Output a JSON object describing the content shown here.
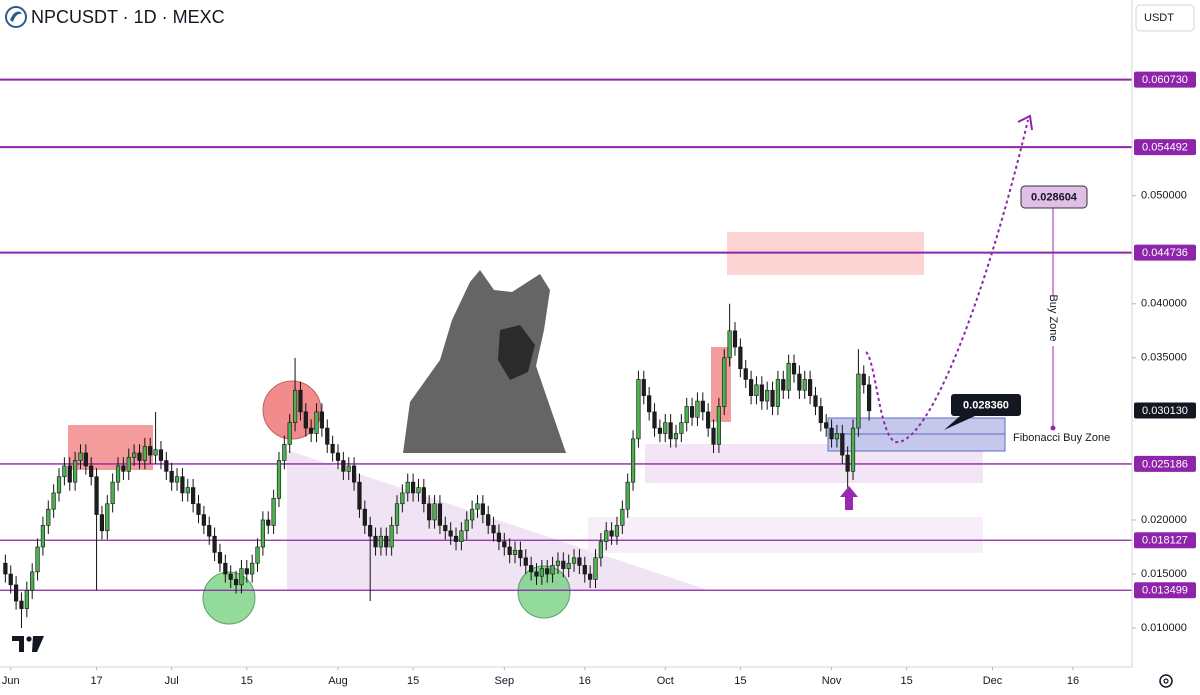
{
  "chart_data": {
    "type": "candlestick",
    "title": "NPCUSDT · 1D · MEXC",
    "currency": "USDT",
    "up_color": "#4caf50",
    "down_color": "#1e1e1e",
    "grid": false,
    "xlim": [
      "05-30",
      "12-27"
    ],
    "xticks": [
      {
        "value": "06-01",
        "label": "Jun"
      },
      {
        "value": "06-17",
        "label": "17"
      },
      {
        "value": "07-01",
        "label": "Jul"
      },
      {
        "value": "07-15",
        "label": "15"
      },
      {
        "value": "08-01",
        "label": "Aug"
      },
      {
        "value": "08-15",
        "label": "15"
      },
      {
        "value": "09-01",
        "label": "Sep"
      },
      {
        "value": "09-16",
        "label": "16"
      },
      {
        "value": "10-01",
        "label": "Oct"
      },
      {
        "value": "10-15",
        "label": "15"
      },
      {
        "value": "11-01",
        "label": "Nov"
      },
      {
        "value": "11-15",
        "label": "15"
      },
      {
        "value": "12-01",
        "label": "Dec"
      },
      {
        "value": "12-16",
        "label": "16"
      }
    ],
    "ylim": [
      0.0064,
      0.0681
    ],
    "yticks": [
      {
        "value": 0.01,
        "label": "0.010000"
      },
      {
        "value": 0.015,
        "label": "0.015000"
      },
      {
        "value": 0.02,
        "label": "0.020000"
      },
      {
        "value": 0.035,
        "label": "0.035000"
      },
      {
        "value": 0.04,
        "label": "0.040000"
      },
      {
        "value": 0.05,
        "label": "0.050000"
      }
    ],
    "levels": [
      {
        "value": 0.06073,
        "label": "0.060730"
      },
      {
        "value": 0.054492,
        "label": "0.054492"
      },
      {
        "value": 0.044736,
        "label": "0.044736"
      },
      {
        "value": 0.025186,
        "label": "0.025186"
      },
      {
        "value": 0.018127,
        "label": "0.018127"
      },
      {
        "value": 0.013499,
        "label": "0.013499"
      }
    ],
    "last_price": {
      "value": 0.03013,
      "label": "0.030130"
    },
    "annotations": {
      "target_box": "0.028604",
      "entry_box": "0.028360",
      "buy_zone": "Buy Zone",
      "fib_zone": "Fibonacci Buy Zone"
    },
    "x": [
      "05-31",
      "06-01",
      "06-02",
      "06-03",
      "06-04",
      "06-05",
      "06-06",
      "06-07",
      "06-08",
      "06-09",
      "06-10",
      "06-11",
      "06-12",
      "06-13",
      "06-14",
      "06-15",
      "06-16",
      "06-17",
      "06-18",
      "06-19",
      "06-20",
      "06-21",
      "06-22",
      "06-23",
      "06-24",
      "06-25",
      "06-26",
      "06-27",
      "06-28",
      "06-29",
      "06-30",
      "07-01",
      "07-02",
      "07-03",
      "07-04",
      "07-05",
      "07-06",
      "07-07",
      "07-08",
      "07-09",
      "07-10",
      "07-11",
      "07-12",
      "07-13",
      "07-14",
      "07-15",
      "07-16",
      "07-17",
      "07-18",
      "07-19",
      "07-20",
      "07-21",
      "07-22",
      "07-23",
      "07-24",
      "07-25",
      "07-26",
      "07-27",
      "07-28",
      "07-29",
      "07-30",
      "07-31",
      "08-01",
      "08-02",
      "08-03",
      "08-04",
      "08-05",
      "08-06",
      "08-07",
      "08-08",
      "08-09",
      "08-10",
      "08-11",
      "08-12",
      "08-13",
      "08-14",
      "08-15",
      "08-16",
      "08-17",
      "08-18",
      "08-19",
      "08-20",
      "08-21",
      "08-22",
      "08-23",
      "08-24",
      "08-25",
      "08-26",
      "08-27",
      "08-28",
      "08-29",
      "08-30",
      "08-31",
      "09-01",
      "09-02",
      "09-03",
      "09-04",
      "09-05",
      "09-06",
      "09-07",
      "09-08",
      "09-09",
      "09-10",
      "09-11",
      "09-12",
      "09-13",
      "09-14",
      "09-15",
      "09-16",
      "09-17",
      "09-18",
      "09-19",
      "09-20",
      "09-21",
      "09-22",
      "09-23",
      "09-24",
      "09-25",
      "09-26",
      "09-27",
      "09-28",
      "09-29",
      "09-30",
      "10-01",
      "10-02",
      "10-03",
      "10-04",
      "10-05",
      "10-06",
      "10-07",
      "10-08",
      "10-09",
      "10-10",
      "10-11",
      "10-12",
      "10-13",
      "10-14",
      "10-15",
      "10-16",
      "10-17",
      "10-18",
      "10-19",
      "10-20",
      "10-21",
      "10-22",
      "10-23",
      "10-24",
      "10-25",
      "10-26",
      "10-27",
      "10-28",
      "10-29",
      "10-30",
      "10-31",
      "11-01",
      "11-02",
      "11-03",
      "11-04",
      "11-05",
      "11-06",
      "11-07",
      "11-08"
    ],
    "candles": [
      [
        0.016,
        0.0168,
        0.0142,
        0.015
      ],
      [
        0.015,
        0.0158,
        0.0132,
        0.014
      ],
      [
        0.014,
        0.0148,
        0.0117,
        0.0125
      ],
      [
        0.0125,
        0.0133,
        0.01,
        0.0118
      ],
      [
        0.0118,
        0.0143,
        0.011,
        0.0135
      ],
      [
        0.0135,
        0.016,
        0.0127,
        0.0152
      ],
      [
        0.0152,
        0.0183,
        0.0144,
        0.0175
      ],
      [
        0.0175,
        0.0203,
        0.0167,
        0.0195
      ],
      [
        0.0195,
        0.0218,
        0.0187,
        0.021
      ],
      [
        0.021,
        0.0233,
        0.0202,
        0.0225
      ],
      [
        0.0225,
        0.0248,
        0.0217,
        0.024
      ],
      [
        0.024,
        0.0258,
        0.0232,
        0.025
      ],
      [
        0.025,
        0.0258,
        0.0227,
        0.0235
      ],
      [
        0.0235,
        0.0263,
        0.0227,
        0.0255
      ],
      [
        0.0255,
        0.027,
        0.0247,
        0.0262
      ],
      [
        0.0262,
        0.027,
        0.0242,
        0.025
      ],
      [
        0.025,
        0.0258,
        0.0232,
        0.024
      ],
      [
        0.024,
        0.0248,
        0.0135,
        0.0205
      ],
      [
        0.0205,
        0.0213,
        0.0182,
        0.019
      ],
      [
        0.019,
        0.0223,
        0.0182,
        0.0215
      ],
      [
        0.0215,
        0.0243,
        0.0207,
        0.0235
      ],
      [
        0.0235,
        0.0258,
        0.0227,
        0.025
      ],
      [
        0.025,
        0.0258,
        0.0237,
        0.0245
      ],
      [
        0.0245,
        0.0266,
        0.0237,
        0.0258
      ],
      [
        0.0258,
        0.027,
        0.025,
        0.0262
      ],
      [
        0.0262,
        0.027,
        0.0247,
        0.0255
      ],
      [
        0.0255,
        0.0276,
        0.0247,
        0.0268
      ],
      [
        0.0268,
        0.0276,
        0.0252,
        0.026
      ],
      [
        0.026,
        0.03,
        0.0252,
        0.0265
      ],
      [
        0.0265,
        0.0273,
        0.0247,
        0.0255
      ],
      [
        0.0255,
        0.0263,
        0.0237,
        0.0245
      ],
      [
        0.0245,
        0.0253,
        0.0227,
        0.0235
      ],
      [
        0.0235,
        0.0248,
        0.0227,
        0.024
      ],
      [
        0.024,
        0.0248,
        0.0217,
        0.0225
      ],
      [
        0.0225,
        0.0238,
        0.0217,
        0.023
      ],
      [
        0.023,
        0.0238,
        0.0207,
        0.0215
      ],
      [
        0.0215,
        0.0223,
        0.0197,
        0.0205
      ],
      [
        0.0205,
        0.0213,
        0.0187,
        0.0195
      ],
      [
        0.0195,
        0.0203,
        0.0177,
        0.0185
      ],
      [
        0.0185,
        0.0193,
        0.0162,
        0.017
      ],
      [
        0.017,
        0.0178,
        0.0152,
        0.016
      ],
      [
        0.016,
        0.0168,
        0.0142,
        0.015
      ],
      [
        0.015,
        0.0158,
        0.0137,
        0.0145
      ],
      [
        0.0145,
        0.0153,
        0.0132,
        0.014
      ],
      [
        0.014,
        0.0163,
        0.0132,
        0.0155
      ],
      [
        0.0155,
        0.0163,
        0.0142,
        0.015
      ],
      [
        0.015,
        0.0168,
        0.0142,
        0.016
      ],
      [
        0.016,
        0.0183,
        0.0152,
        0.0175
      ],
      [
        0.0175,
        0.0208,
        0.0167,
        0.02
      ],
      [
        0.02,
        0.0208,
        0.0187,
        0.0195
      ],
      [
        0.0195,
        0.0228,
        0.0187,
        0.022
      ],
      [
        0.022,
        0.0263,
        0.0212,
        0.0255
      ],
      [
        0.0255,
        0.0278,
        0.0247,
        0.027
      ],
      [
        0.027,
        0.0298,
        0.0262,
        0.029
      ],
      [
        0.029,
        0.035,
        0.0282,
        0.032
      ],
      [
        0.032,
        0.0328,
        0.0292,
        0.03
      ],
      [
        0.03,
        0.0308,
        0.0277,
        0.0285
      ],
      [
        0.0285,
        0.0293,
        0.0272,
        0.028
      ],
      [
        0.028,
        0.0308,
        0.0272,
        0.03
      ],
      [
        0.03,
        0.0308,
        0.0277,
        0.0285
      ],
      [
        0.0285,
        0.0293,
        0.0262,
        0.027
      ],
      [
        0.027,
        0.0278,
        0.0254,
        0.0262
      ],
      [
        0.0262,
        0.027,
        0.0247,
        0.0255
      ],
      [
        0.0255,
        0.0263,
        0.0237,
        0.0245
      ],
      [
        0.0245,
        0.0258,
        0.0237,
        0.025
      ],
      [
        0.025,
        0.0258,
        0.0227,
        0.0235
      ],
      [
        0.0235,
        0.0243,
        0.0202,
        0.021
      ],
      [
        0.021,
        0.0218,
        0.0187,
        0.0195
      ],
      [
        0.0195,
        0.0203,
        0.0125,
        0.0185
      ],
      [
        0.0185,
        0.0193,
        0.0167,
        0.0175
      ],
      [
        0.0175,
        0.0193,
        0.0167,
        0.0185
      ],
      [
        0.0185,
        0.0193,
        0.0167,
        0.0175
      ],
      [
        0.0175,
        0.0203,
        0.0167,
        0.0195
      ],
      [
        0.0195,
        0.0223,
        0.0187,
        0.0215
      ],
      [
        0.0215,
        0.0233,
        0.0207,
        0.0225
      ],
      [
        0.0225,
        0.0243,
        0.0217,
        0.0235
      ],
      [
        0.0235,
        0.0243,
        0.0217,
        0.0225
      ],
      [
        0.0225,
        0.0238,
        0.0217,
        0.023
      ],
      [
        0.023,
        0.0238,
        0.0207,
        0.0215
      ],
      [
        0.0215,
        0.0223,
        0.0192,
        0.02
      ],
      [
        0.02,
        0.0223,
        0.0192,
        0.0215
      ],
      [
        0.0215,
        0.0223,
        0.0187,
        0.0195
      ],
      [
        0.0195,
        0.0203,
        0.0182,
        0.019
      ],
      [
        0.019,
        0.0198,
        0.0177,
        0.0185
      ],
      [
        0.0185,
        0.0193,
        0.0172,
        0.018
      ],
      [
        0.018,
        0.0198,
        0.0172,
        0.019
      ],
      [
        0.019,
        0.0208,
        0.0182,
        0.02
      ],
      [
        0.02,
        0.0218,
        0.0192,
        0.021
      ],
      [
        0.021,
        0.0223,
        0.0202,
        0.0215
      ],
      [
        0.0215,
        0.0223,
        0.0197,
        0.0205
      ],
      [
        0.0205,
        0.0213,
        0.0187,
        0.0195
      ],
      [
        0.0195,
        0.0203,
        0.018,
        0.0188
      ],
      [
        0.0188,
        0.0196,
        0.0172,
        0.018
      ],
      [
        0.018,
        0.0188,
        0.0167,
        0.0175
      ],
      [
        0.0175,
        0.0183,
        0.016,
        0.0168
      ],
      [
        0.0168,
        0.018,
        0.016,
        0.0172
      ],
      [
        0.0172,
        0.018,
        0.0157,
        0.0165
      ],
      [
        0.0165,
        0.0173,
        0.015,
        0.0158
      ],
      [
        0.0158,
        0.0166,
        0.0144,
        0.0152
      ],
      [
        0.0152,
        0.016,
        0.014,
        0.0148
      ],
      [
        0.0148,
        0.0163,
        0.014,
        0.0155
      ],
      [
        0.0155,
        0.0163,
        0.0142,
        0.015
      ],
      [
        0.015,
        0.0166,
        0.0142,
        0.0158
      ],
      [
        0.0158,
        0.017,
        0.015,
        0.0162
      ],
      [
        0.0162,
        0.017,
        0.0147,
        0.0155
      ],
      [
        0.0155,
        0.0168,
        0.0147,
        0.016
      ],
      [
        0.016,
        0.0173,
        0.0152,
        0.0165
      ],
      [
        0.0165,
        0.0173,
        0.015,
        0.0158
      ],
      [
        0.0158,
        0.0166,
        0.0142,
        0.015
      ],
      [
        0.015,
        0.0158,
        0.0137,
        0.0145
      ],
      [
        0.0145,
        0.0173,
        0.0137,
        0.0165
      ],
      [
        0.0165,
        0.0188,
        0.0157,
        0.018
      ],
      [
        0.018,
        0.0198,
        0.0172,
        0.019
      ],
      [
        0.019,
        0.0198,
        0.0177,
        0.0185
      ],
      [
        0.0185,
        0.0203,
        0.0177,
        0.0195
      ],
      [
        0.0195,
        0.0218,
        0.0187,
        0.021
      ],
      [
        0.021,
        0.0243,
        0.0202,
        0.0235
      ],
      [
        0.0235,
        0.0283,
        0.0227,
        0.0275
      ],
      [
        0.0275,
        0.0338,
        0.0267,
        0.033
      ],
      [
        0.033,
        0.0338,
        0.0307,
        0.0315
      ],
      [
        0.0315,
        0.0323,
        0.0292,
        0.03
      ],
      [
        0.03,
        0.0308,
        0.0277,
        0.0285
      ],
      [
        0.0285,
        0.0293,
        0.0272,
        0.028
      ],
      [
        0.028,
        0.0298,
        0.0272,
        0.029
      ],
      [
        0.029,
        0.0298,
        0.0267,
        0.0275
      ],
      [
        0.0275,
        0.0288,
        0.0267,
        0.028
      ],
      [
        0.028,
        0.0298,
        0.0272,
        0.029
      ],
      [
        0.029,
        0.0313,
        0.0282,
        0.0305
      ],
      [
        0.0305,
        0.0313,
        0.0287,
        0.0295
      ],
      [
        0.0295,
        0.0318,
        0.0287,
        0.031
      ],
      [
        0.031,
        0.0318,
        0.0292,
        0.03
      ],
      [
        0.03,
        0.0308,
        0.0277,
        0.0285
      ],
      [
        0.0285,
        0.0293,
        0.0262,
        0.027
      ],
      [
        0.027,
        0.0313,
        0.0262,
        0.0305
      ],
      [
        0.0305,
        0.0358,
        0.0297,
        0.035
      ],
      [
        0.035,
        0.04,
        0.0342,
        0.0375
      ],
      [
        0.0375,
        0.0383,
        0.0352,
        0.036
      ],
      [
        0.036,
        0.0368,
        0.0332,
        0.034
      ],
      [
        0.034,
        0.0348,
        0.0322,
        0.033
      ],
      [
        0.033,
        0.0338,
        0.0307,
        0.0315
      ],
      [
        0.0315,
        0.0333,
        0.0307,
        0.0325
      ],
      [
        0.0325,
        0.0333,
        0.0302,
        0.031
      ],
      [
        0.031,
        0.0328,
        0.0302,
        0.032
      ],
      [
        0.032,
        0.0328,
        0.0297,
        0.0305
      ],
      [
        0.0305,
        0.0338,
        0.0297,
        0.033
      ],
      [
        0.033,
        0.0338,
        0.0312,
        0.032
      ],
      [
        0.032,
        0.0353,
        0.0312,
        0.0345
      ],
      [
        0.0345,
        0.0353,
        0.0327,
        0.0335
      ],
      [
        0.0335,
        0.0343,
        0.0312,
        0.032
      ],
      [
        0.032,
        0.0338,
        0.0312,
        0.033
      ],
      [
        0.033,
        0.0338,
        0.0307,
        0.0315
      ],
      [
        0.0315,
        0.0323,
        0.0297,
        0.0305
      ],
      [
        0.0305,
        0.0313,
        0.0282,
        0.029
      ],
      [
        0.029,
        0.0298,
        0.0277,
        0.0285
      ],
      [
        0.0285,
        0.0293,
        0.0267,
        0.0275
      ],
      [
        0.0275,
        0.0288,
        0.0267,
        0.028
      ],
      [
        0.028,
        0.0288,
        0.0252,
        0.026
      ],
      [
        0.026,
        0.0268,
        0.023,
        0.0245
      ],
      [
        0.0245,
        0.0293,
        0.0237,
        0.0285
      ],
      [
        0.0285,
        0.0358,
        0.0277,
        0.0335
      ],
      [
        0.0335,
        0.0343,
        0.0317,
        0.0325
      ],
      [
        0.0325,
        0.0333,
        0.0292,
        0.0301
      ]
    ]
  }
}
